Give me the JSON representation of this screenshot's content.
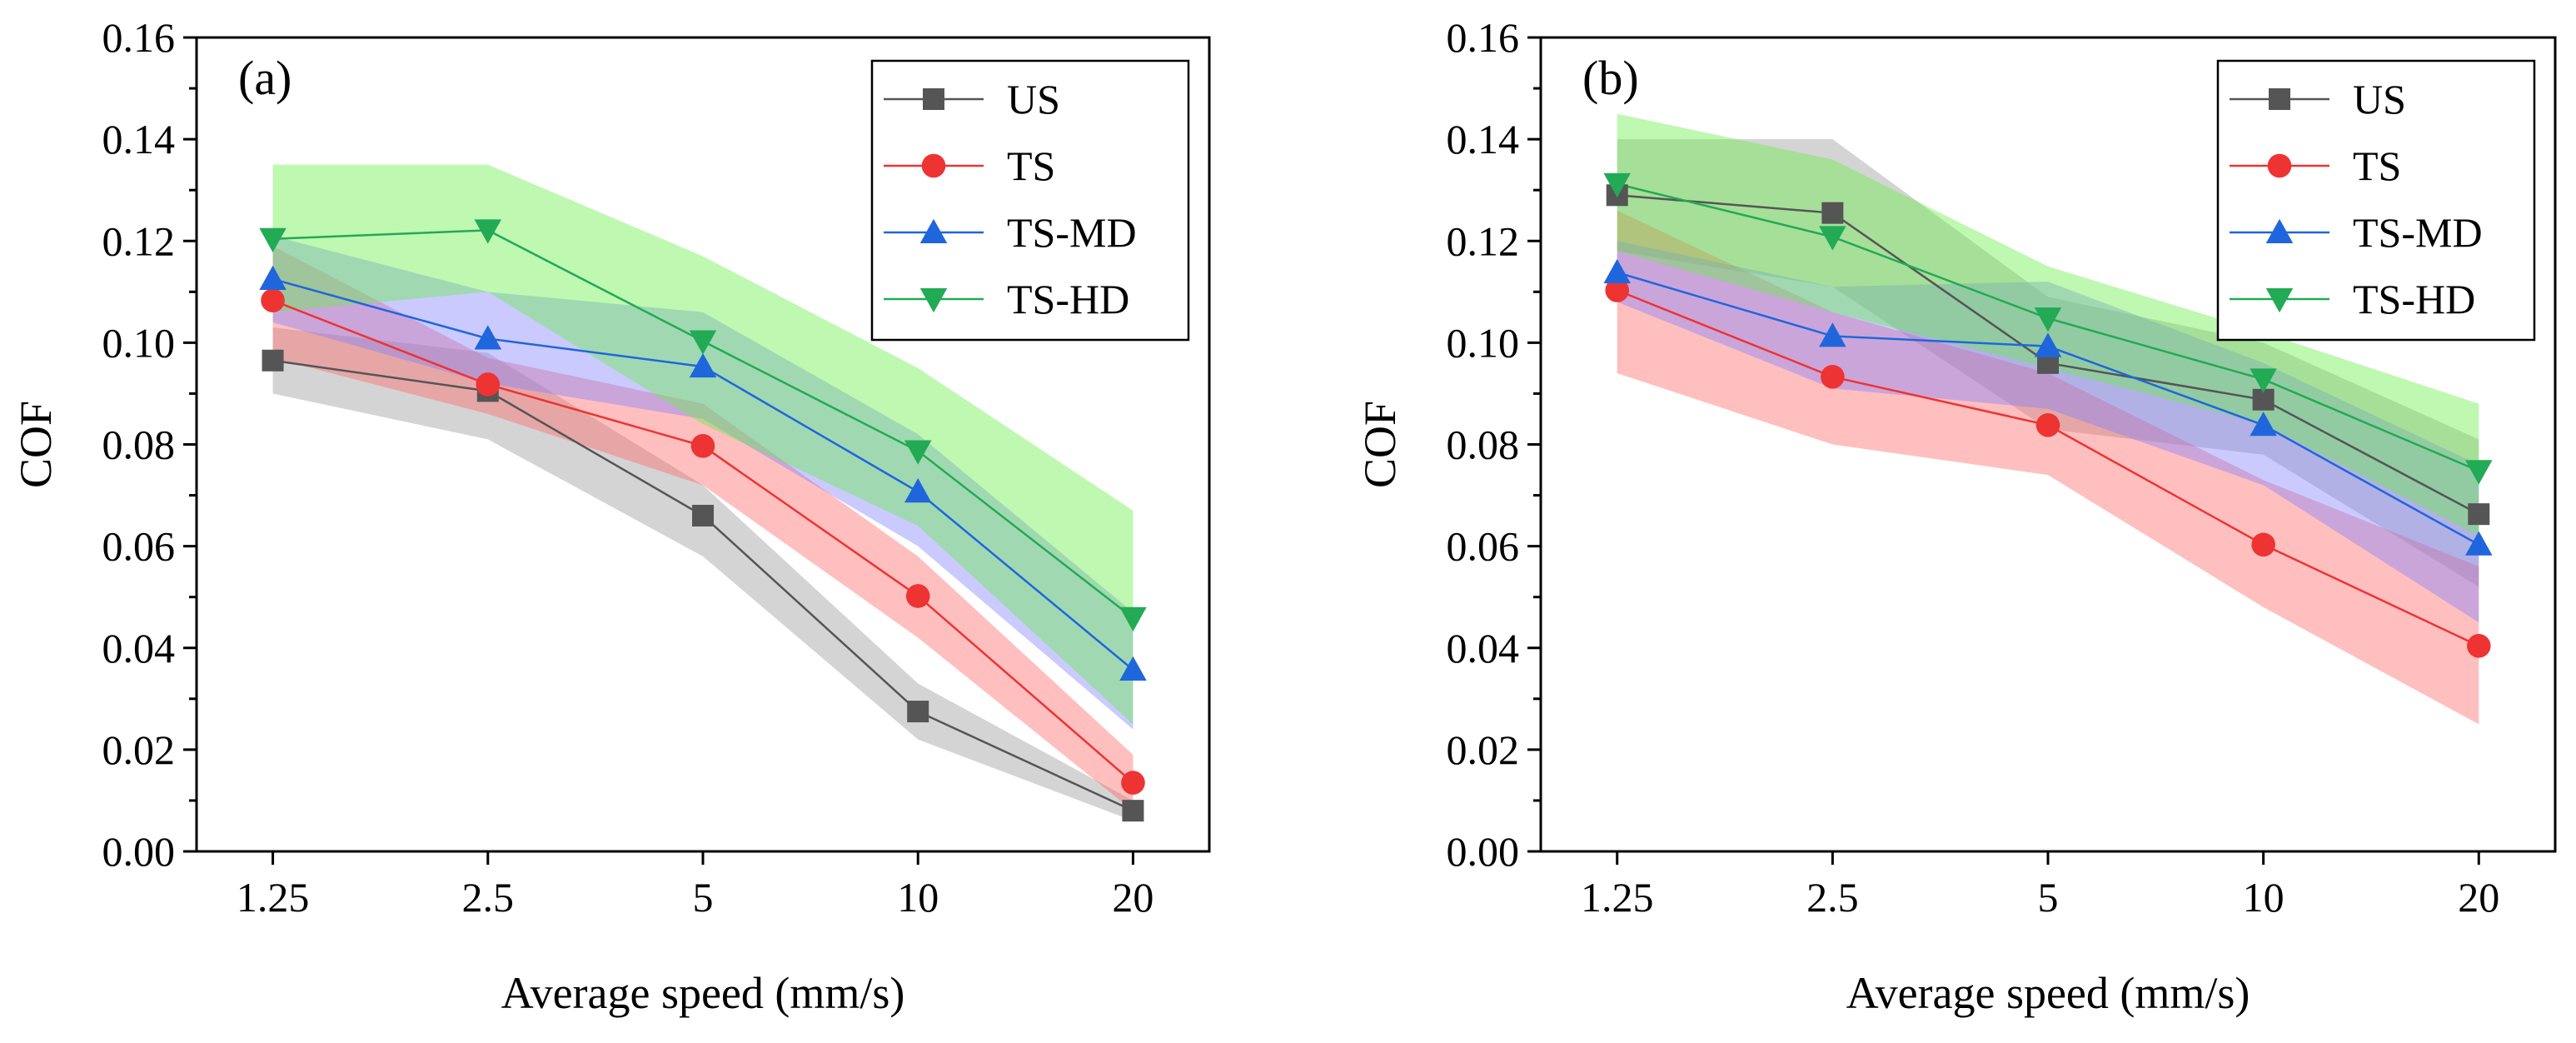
{
  "chart_data": [
    {
      "type": "line",
      "panel_label": "(a)",
      "xlabel": "Average speed (mm/s)",
      "ylabel": "COF",
      "categories": [
        "1.25",
        "2.5",
        "5",
        "10",
        "20"
      ],
      "ylim": [
        0,
        0.16
      ],
      "yticks": [
        "0.00",
        "0.02",
        "0.04",
        "0.06",
        "0.08",
        "0.10",
        "0.12",
        "0.14",
        "0.16"
      ],
      "legend_position": "top-right",
      "series": [
        {
          "name": "US",
          "color": "#555555",
          "band_color": "#999999",
          "marker": "square",
          "values": [
            0.0965,
            0.0905,
            0.066,
            0.0275,
            0.008
          ],
          "lower": [
            0.09,
            0.081,
            0.058,
            0.022,
            0.006
          ],
          "upper": [
            0.103,
            0.098,
            0.072,
            0.033,
            0.01
          ]
        },
        {
          "name": "TS",
          "color": "#ee3333",
          "band_color": "#ff6666",
          "marker": "circle",
          "values": [
            0.1083,
            0.0918,
            0.0797,
            0.0502,
            0.0135
          ],
          "lower": [
            0.097,
            0.086,
            0.072,
            0.042,
            0.008
          ],
          "upper": [
            0.119,
            0.097,
            0.088,
            0.058,
            0.019
          ]
        },
        {
          "name": "TS-MD",
          "color": "#1f66dd",
          "band_color": "#8080ff",
          "marker": "triangle-up",
          "values": [
            0.1125,
            0.1008,
            0.0953,
            0.0707,
            0.0357
          ],
          "lower": [
            0.104,
            0.092,
            0.085,
            0.06,
            0.024
          ],
          "upper": [
            0.121,
            0.11,
            0.106,
            0.082,
            0.047
          ]
        },
        {
          "name": "TS-HD",
          "color": "#22aa55",
          "band_color": "#66ee44",
          "marker": "triangle-down",
          "values": [
            0.1204,
            0.1221,
            0.1003,
            0.0787,
            0.0459
          ],
          "lower": [
            0.106,
            0.11,
            0.084,
            0.064,
            0.025
          ],
          "upper": [
            0.135,
            0.135,
            0.117,
            0.095,
            0.067
          ]
        }
      ]
    },
    {
      "type": "line",
      "panel_label": "(b)",
      "xlabel": "Average speed (mm/s)",
      "ylabel": "COF",
      "categories": [
        "1.25",
        "2.5",
        "5",
        "10",
        "20"
      ],
      "ylim": [
        0,
        0.16
      ],
      "yticks": [
        "0.00",
        "0.02",
        "0.04",
        "0.06",
        "0.08",
        "0.10",
        "0.12",
        "0.14",
        "0.16"
      ],
      "legend_position": "top-right",
      "series": [
        {
          "name": "US",
          "color": "#555555",
          "band_color": "#999999",
          "marker": "square",
          "values": [
            0.129,
            0.1255,
            0.096,
            0.0888,
            0.0663
          ],
          "lower": [
            0.118,
            0.111,
            0.083,
            0.078,
            0.052
          ],
          "upper": [
            0.14,
            0.14,
            0.109,
            0.1,
            0.081
          ]
        },
        {
          "name": "TS",
          "color": "#ee3333",
          "band_color": "#ff6666",
          "marker": "circle",
          "values": [
            0.1103,
            0.0933,
            0.0838,
            0.0603,
            0.0404
          ],
          "lower": [
            0.094,
            0.08,
            0.074,
            0.048,
            0.025
          ],
          "upper": [
            0.126,
            0.106,
            0.094,
            0.073,
            0.056
          ]
        },
        {
          "name": "TS-MD",
          "color": "#1f66dd",
          "band_color": "#8080ff",
          "marker": "triangle-up",
          "values": [
            0.1138,
            0.1013,
            0.0993,
            0.0838,
            0.0603
          ],
          "lower": [
            0.108,
            0.091,
            0.087,
            0.072,
            0.045
          ],
          "upper": [
            0.12,
            0.111,
            0.112,
            0.096,
            0.076
          ]
        },
        {
          "name": "TS-HD",
          "color": "#22aa55",
          "band_color": "#66ee44",
          "marker": "triangle-down",
          "values": [
            0.1312,
            0.1208,
            0.1048,
            0.0928,
            0.0748
          ],
          "lower": [
            0.118,
            0.106,
            0.095,
            0.084,
            0.062
          ],
          "upper": [
            0.145,
            0.136,
            0.115,
            0.102,
            0.088
          ]
        }
      ]
    }
  ]
}
